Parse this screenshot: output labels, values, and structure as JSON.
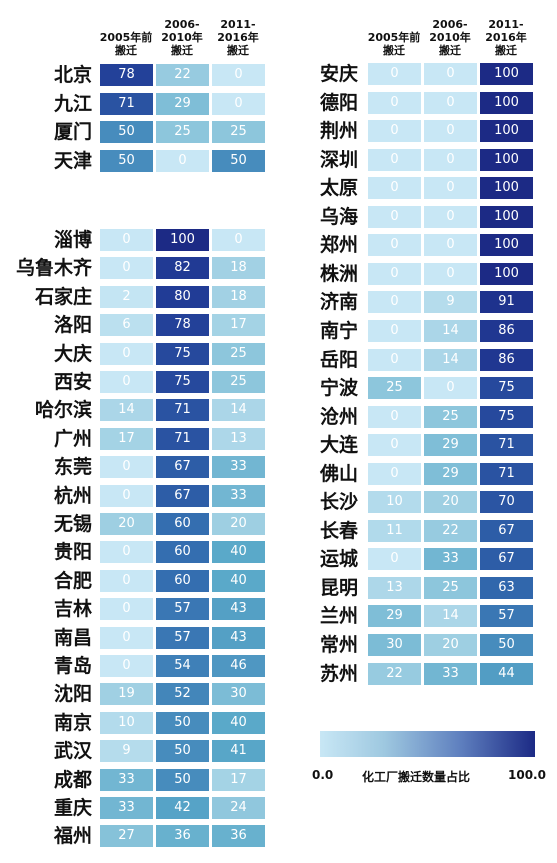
{
  "chart_data": {
    "type": "heatmap",
    "columns": [
      {
        "line1": "2005年前",
        "line2": "搬迁"
      },
      {
        "line1": "2006-",
        "line2": "2010年",
        "line3": "搬迁"
      },
      {
        "line1": "2011-",
        "line2": "2016年",
        "line3": "搬迁"
      }
    ],
    "left_group_1": [
      {
        "city": "北京",
        "values": [
          78,
          22,
          0
        ]
      },
      {
        "city": "九江",
        "values": [
          71,
          29,
          0
        ]
      },
      {
        "city": "厦门",
        "values": [
          50,
          25,
          25
        ]
      },
      {
        "city": "天津",
        "values": [
          50,
          0,
          50
        ]
      }
    ],
    "left_group_2": [
      {
        "city": "淄博",
        "values": [
          0,
          100,
          0
        ]
      },
      {
        "city": "乌鲁木齐",
        "values": [
          0,
          82,
          18
        ]
      },
      {
        "city": "石家庄",
        "values": [
          2,
          80,
          18
        ]
      },
      {
        "city": "洛阳",
        "values": [
          6,
          78,
          17
        ]
      },
      {
        "city": "大庆",
        "values": [
          0,
          75,
          25
        ]
      },
      {
        "city": "西安",
        "values": [
          0,
          75,
          25
        ]
      },
      {
        "city": "哈尔滨",
        "values": [
          14,
          71,
          14
        ]
      },
      {
        "city": "广州",
        "values": [
          17,
          71,
          13
        ]
      },
      {
        "city": "东莞",
        "values": [
          0,
          67,
          33
        ]
      },
      {
        "city": "杭州",
        "values": [
          0,
          67,
          33
        ]
      },
      {
        "city": "无锡",
        "values": [
          20,
          60,
          20
        ]
      },
      {
        "city": "贵阳",
        "values": [
          0,
          60,
          40
        ]
      },
      {
        "city": "合肥",
        "values": [
          0,
          60,
          40
        ]
      },
      {
        "city": "吉林",
        "values": [
          0,
          57,
          43
        ]
      },
      {
        "city": "南昌",
        "values": [
          0,
          57,
          43
        ]
      },
      {
        "city": "青岛",
        "values": [
          0,
          54,
          46
        ]
      },
      {
        "city": "沈阳",
        "values": [
          19,
          52,
          30
        ]
      },
      {
        "city": "南京",
        "values": [
          10,
          50,
          40
        ]
      },
      {
        "city": "武汉",
        "values": [
          9,
          50,
          41
        ]
      },
      {
        "city": "成都",
        "values": [
          33,
          50,
          17
        ]
      },
      {
        "city": "重庆",
        "values": [
          33,
          42,
          24
        ]
      },
      {
        "city": "福州",
        "values": [
          27,
          36,
          36
        ]
      }
    ],
    "right_group": [
      {
        "city": "安庆",
        "values": [
          0,
          0,
          100
        ]
      },
      {
        "city": "德阳",
        "values": [
          0,
          0,
          100
        ]
      },
      {
        "city": "荆州",
        "values": [
          0,
          0,
          100
        ]
      },
      {
        "city": "深圳",
        "values": [
          0,
          0,
          100
        ]
      },
      {
        "city": "太原",
        "values": [
          0,
          0,
          100
        ]
      },
      {
        "city": "乌海",
        "values": [
          0,
          0,
          100
        ]
      },
      {
        "city": "郑州",
        "values": [
          0,
          0,
          100
        ]
      },
      {
        "city": "株洲",
        "values": [
          0,
          0,
          100
        ]
      },
      {
        "city": "济南",
        "values": [
          0,
          9,
          91
        ]
      },
      {
        "city": "南宁",
        "values": [
          0,
          14,
          86
        ]
      },
      {
        "city": "岳阳",
        "values": [
          0,
          14,
          86
        ]
      },
      {
        "city": "宁波",
        "values": [
          25,
          0,
          75
        ]
      },
      {
        "city": "沧州",
        "values": [
          0,
          25,
          75
        ]
      },
      {
        "city": "大连",
        "values": [
          0,
          29,
          71
        ]
      },
      {
        "city": "佛山",
        "values": [
          0,
          29,
          71
        ]
      },
      {
        "city": "长沙",
        "values": [
          10,
          20,
          70
        ]
      },
      {
        "city": "长春",
        "values": [
          11,
          22,
          67
        ]
      },
      {
        "city": "运城",
        "values": [
          0,
          33,
          67
        ]
      },
      {
        "city": "昆明",
        "values": [
          13,
          25,
          63
        ]
      },
      {
        "city": "兰州",
        "values": [
          29,
          14,
          57
        ]
      },
      {
        "city": "常州",
        "values": [
          30,
          20,
          50
        ]
      },
      {
        "city": "苏州",
        "values": [
          22,
          33,
          44
        ]
      }
    ],
    "legend": {
      "min_label": "0.0",
      "max_label": "100.0",
      "title": "化工厂搬迁数量占比",
      "range": [
        0,
        100
      ]
    },
    "colors": {
      "low": "#c8e7f5",
      "mid": "#5aa9c9",
      "high": "#1c2a85",
      "light_text": "#ffffff"
    }
  }
}
